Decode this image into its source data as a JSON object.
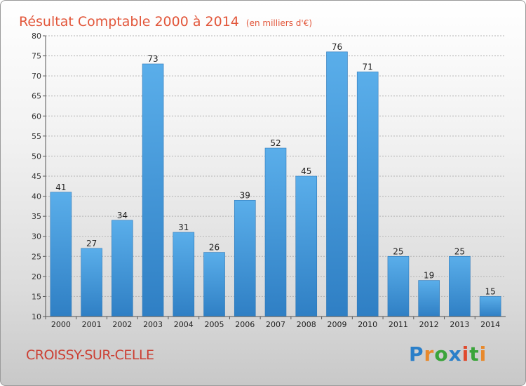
{
  "chart_data": {
    "type": "bar",
    "title": "Résultat Comptable 2000 à 2014",
    "unit_label": "(en milliers d'€)",
    "categories": [
      "2000",
      "2001",
      "2002",
      "2003",
      "2004",
      "2005",
      "2006",
      "2007",
      "2008",
      "2009",
      "2010",
      "2011",
      "2012",
      "2013",
      "2014"
    ],
    "values": [
      41,
      27,
      34,
      73,
      31,
      26,
      39,
      52,
      45,
      76,
      71,
      25,
      19,
      25,
      15
    ],
    "ylim": [
      10,
      80
    ],
    "yticks": [
      10,
      15,
      20,
      25,
      30,
      35,
      40,
      45,
      50,
      55,
      60,
      65,
      70,
      75,
      80
    ],
    "xlabel": "",
    "ylabel": "",
    "grid": "horizontal",
    "bar_color": "#3f94d8"
  },
  "footer": {
    "commune": "CROISSY-SUR-CELLE",
    "logo_text": "Proxiti",
    "logo_colors": [
      "#2a7fc9",
      "#e8892c",
      "#3aa43a",
      "#2a7fc9",
      "#e04a2d",
      "#3aa43a",
      "#e8892c"
    ]
  },
  "colors": {
    "title": "#e2563a",
    "commune": "#cc3f33"
  }
}
